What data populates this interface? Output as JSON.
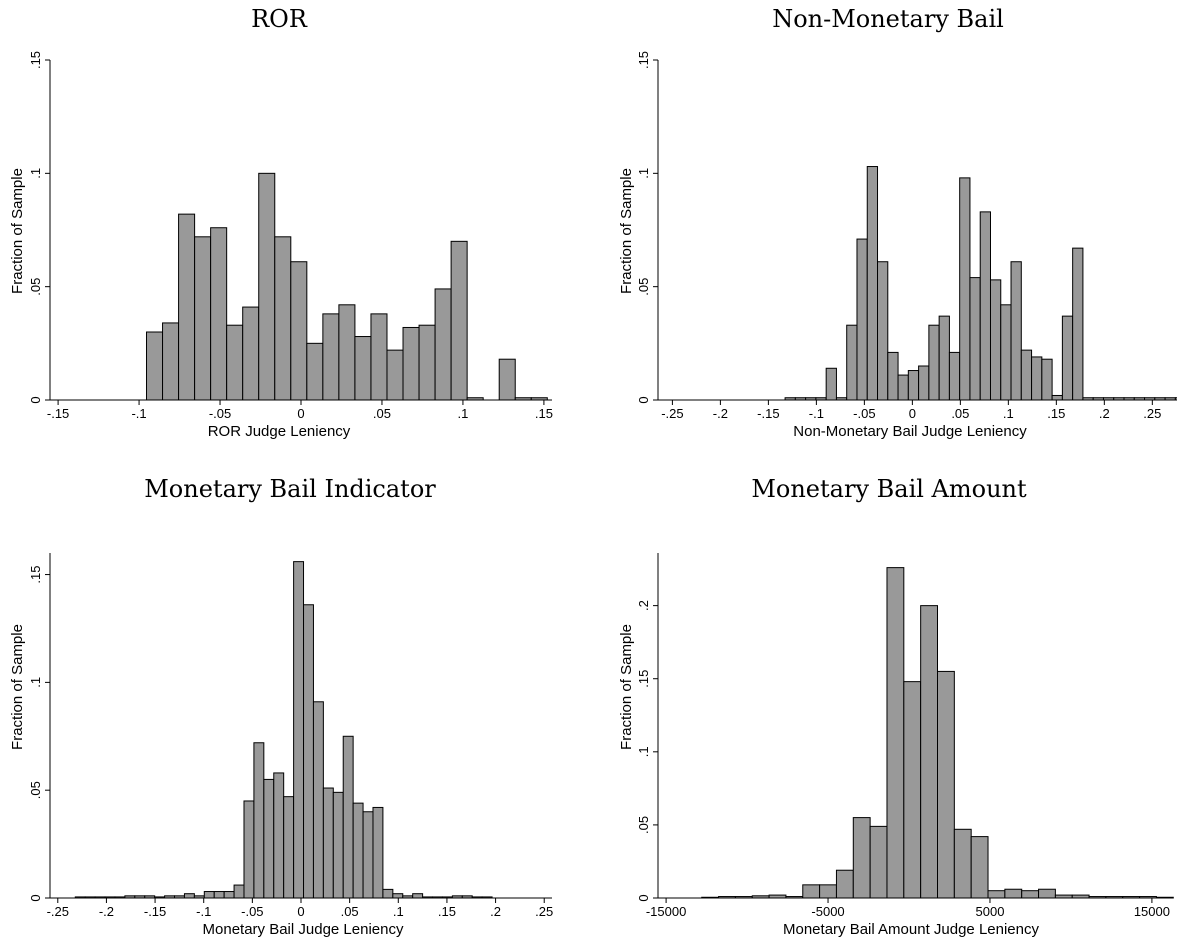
{
  "chart_data": [
    {
      "type": "bar",
      "title": "ROR",
      "xlabel": "ROR Judge Leniency",
      "ylabel": "Fraction of Sample",
      "xlim": [
        -0.155,
        0.155
      ],
      "ylim": [
        0,
        0.15
      ],
      "xticks": [
        -0.15,
        -0.1,
        -0.05,
        0,
        0.05,
        0.1,
        0.15
      ],
      "xtick_labels": [
        "-.15",
        "-.1",
        "-.05",
        "0",
        ".05",
        ".1",
        ".15"
      ],
      "yticks": [
        0,
        0.05,
        0.1,
        0.15
      ],
      "ytick_labels": [
        "0",
        ".05",
        ".1",
        ".15"
      ],
      "bin_start": -0.0954,
      "bin_width": 0.0099,
      "values": [
        0.03,
        0.034,
        0.082,
        0.072,
        0.076,
        0.033,
        0.041,
        0.1,
        0.072,
        0.061,
        0.025,
        0.038,
        0.042,
        0.028,
        0.038,
        0.022,
        0.032,
        0.033,
        0.049,
        0.07,
        0.001,
        0.0,
        0.018,
        0.001,
        0.001
      ]
    },
    {
      "type": "bar",
      "title": "Non-Monetary Bail",
      "xlabel": "Non-Monetary Bail Judge Leniency",
      "ylabel": "Fraction of Sample",
      "xlim": [
        -0.265,
        0.258
      ],
      "ylim": [
        0,
        0.15
      ],
      "xticks": [
        -0.25,
        -0.2,
        -0.15,
        -0.1,
        -0.05,
        0,
        0.05,
        0.1,
        0.15,
        0.2,
        0.25
      ],
      "xtick_labels": [
        "-.25",
        "-.2",
        "-.15",
        "-.1",
        "-.05",
        "0",
        ".05",
        ".1",
        ".15",
        ".2",
        ".25"
      ],
      "yticks": [
        0,
        0.05,
        0.1,
        0.15
      ],
      "ytick_labels": [
        "0",
        ".05",
        ".1",
        ".15"
      ],
      "bin_start": -0.1326,
      "bin_width": 0.0107,
      "values": [
        0.001,
        0.001,
        0.001,
        0.001,
        0.014,
        0.001,
        0.033,
        0.071,
        0.103,
        0.061,
        0.021,
        0.011,
        0.013,
        0.015,
        0.033,
        0.037,
        0.021,
        0.098,
        0.054,
        0.083,
        0.053,
        0.042,
        0.061,
        0.022,
        0.019,
        0.018,
        0.002,
        0.037,
        0.067,
        0.001,
        0.001,
        0.001,
        0.001,
        0.001,
        0.001,
        0.001,
        0.001,
        0.001,
        0.001,
        0.001
      ]
    },
    {
      "type": "bar",
      "title": "Monetary Bail Indicator",
      "xlabel": "Monetary Bail Judge Leniency",
      "ylabel": "Fraction of Sample",
      "xlim": [
        -0.258,
        0.258
      ],
      "ylim": [
        0,
        0.16
      ],
      "xticks": [
        -0.25,
        -0.2,
        -0.15,
        -0.1,
        -0.05,
        0,
        0.05,
        0.1,
        0.15,
        0.2,
        0.25
      ],
      "xtick_labels": [
        "-.25",
        "-.2",
        "-.15",
        "-.1",
        "-.05",
        "0",
        ".05",
        ".1",
        ".15",
        ".2",
        ".25"
      ],
      "yticks": [
        0,
        0.05,
        0.1,
        0.15
      ],
      "ytick_labels": [
        "0",
        ".05",
        ".1",
        ".15"
      ],
      "bin_start": -0.232,
      "bin_width": 0.0102,
      "values": [
        0.0005,
        0.0005,
        0.0005,
        0.0005,
        0.0005,
        0.001,
        0.001,
        0.001,
        0.0005,
        0.001,
        0.001,
        0.002,
        0.001,
        0.003,
        0.003,
        0.003,
        0.006,
        0.045,
        0.072,
        0.055,
        0.058,
        0.047,
        0.156,
        0.136,
        0.091,
        0.051,
        0.049,
        0.075,
        0.044,
        0.04,
        0.042,
        0.004,
        0.002,
        0.001,
        0.002,
        0.0005,
        0.0005,
        0.0005,
        0.001,
        0.001,
        0.0005,
        0.0005
      ]
    },
    {
      "type": "bar",
      "title": "Monetary Bail Amount",
      "xlabel": "Monetary Bail Amount Judge Leniency",
      "ylabel": "Fraction of Sample",
      "xlim": [
        -15500,
        15500
      ],
      "ylim": [
        0,
        0.236
      ],
      "xticks": [
        -15000,
        -5000,
        5000,
        15000
      ],
      "xtick_labels": [
        "-15000",
        "-5000",
        "5000",
        "15000"
      ],
      "yticks": [
        0,
        0.05,
        0.1,
        0.15,
        0.2
      ],
      "ytick_labels": [
        "0",
        ".05",
        ".1",
        ".15",
        ".2"
      ],
      "bin_start": -12800,
      "bin_width": 1040,
      "values": [
        0.0005,
        0.001,
        0.001,
        0.0015,
        0.002,
        0.001,
        0.009,
        0.009,
        0.019,
        0.055,
        0.049,
        0.226,
        0.148,
        0.2,
        0.155,
        0.047,
        0.042,
        0.005,
        0.006,
        0.005,
        0.006,
        0.002,
        0.002,
        0.001,
        0.001,
        0.001,
        0.001,
        0.0005
      ]
    }
  ]
}
